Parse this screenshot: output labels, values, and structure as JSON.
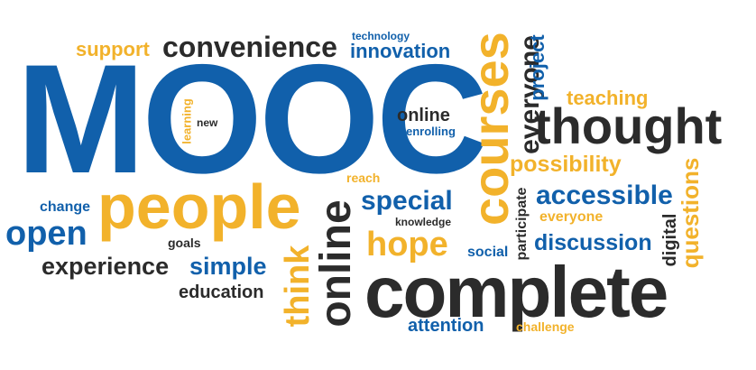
{
  "colors": {
    "blue": "#1160ab",
    "gold": "#f2b22b",
    "dark": "#2b2b2b",
    "background": "#ffffff"
  },
  "words": {
    "mooc": "MOOC",
    "support": "support",
    "convenience": "convenience",
    "technology": "technology",
    "innovation": "innovation",
    "courses": "courses",
    "everyone_vertical": "everyone",
    "project": "project",
    "teaching": "teaching",
    "thought": "thought",
    "learning": "learning",
    "new": "new",
    "online_small": "online",
    "enrolling": "enrolling",
    "possibility": "possibility",
    "questions": "questions",
    "reach": "reach",
    "change": "change",
    "people": "people",
    "special": "special",
    "participate": "participate",
    "accessible": "accessible",
    "open": "open",
    "knowledge": "knowledge",
    "everyone": "everyone",
    "digital": "digital",
    "goals": "goals",
    "hope": "hope",
    "discussion": "discussion",
    "online_large": "online",
    "social": "social",
    "experience": "experience",
    "simple": "simple",
    "think": "think",
    "complete": "complete",
    "education": "education",
    "attention": "attention",
    "challenge": "challenge"
  }
}
